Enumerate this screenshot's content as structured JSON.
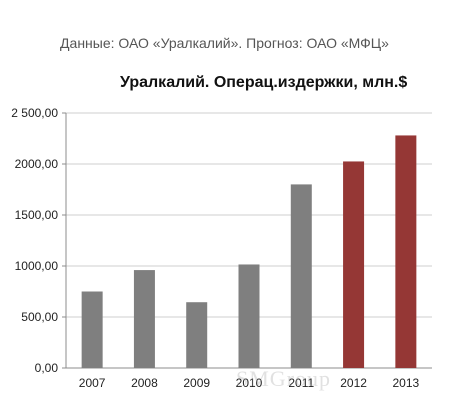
{
  "source_note": "Данные: ОАО «Уралкалий». Прогноз: ОАО «МФЦ»",
  "watermark": "SMGroup",
  "colors": {
    "actual": "#7f7f7f",
    "forecast": "#953735",
    "axis": "#8c8c8c",
    "grid": "#cfcfcf"
  },
  "chart_data": {
    "type": "bar",
    "title": "Уралкалий. Операц.издержки, млн.$",
    "xlabel": "",
    "ylabel": "",
    "categories": [
      "2007",
      "2008",
      "2009",
      "2010",
      "2011",
      "2012",
      "2013"
    ],
    "values": [
      750,
      960,
      645,
      1015,
      1800,
      2025,
      2280
    ],
    "forecast": [
      false,
      false,
      false,
      false,
      false,
      true,
      true
    ],
    "ylim": [
      0,
      2500
    ],
    "yticks": [
      0,
      500,
      1000,
      1500,
      2000,
      2500
    ],
    "ytick_labels": [
      "0,00",
      "500,00",
      "1000,00",
      "1500,00",
      "2000,00",
      "2 500,00"
    ],
    "grid": true,
    "legend": "none"
  }
}
